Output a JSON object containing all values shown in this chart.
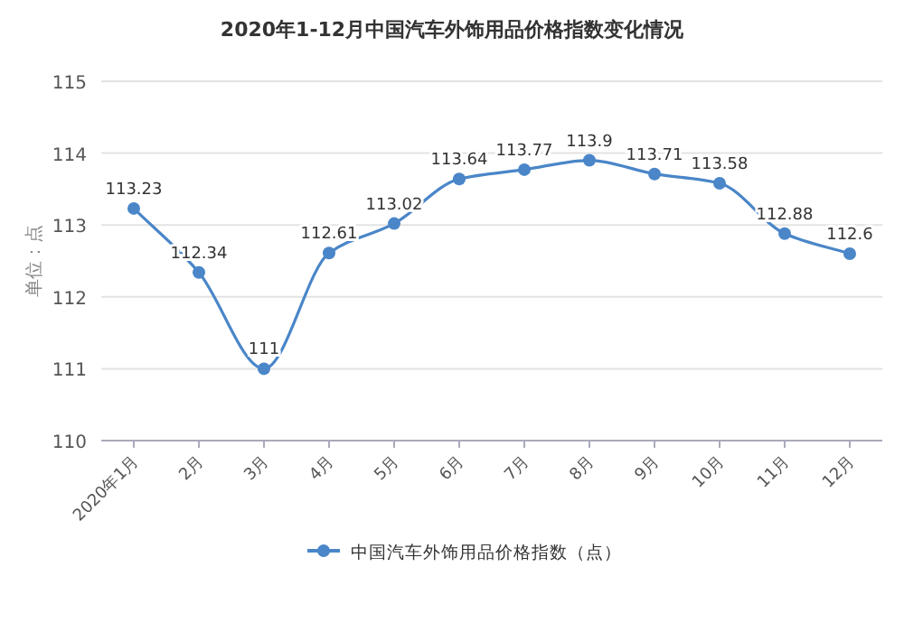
{
  "chart_data": {
    "type": "line",
    "title": "2020年1-12月中国汽车外饰用品价格指数变化情况",
    "ylabel": "单位：点",
    "categories": [
      "2020年1月",
      "2月",
      "3月",
      "4月",
      "5月",
      "6月",
      "7月",
      "8月",
      "9月",
      "10月",
      "11月",
      "12月"
    ],
    "series": [
      {
        "name": "中国汽车外饰用品价格指数（点）",
        "color": "#4a86c8",
        "values": [
          113.23,
          112.34,
          111,
          112.61,
          113.02,
          113.64,
          113.77,
          113.9,
          113.71,
          113.58,
          112.88,
          112.6
        ]
      }
    ],
    "ylim": [
      110,
      115
    ],
    "yticks": [
      110,
      111,
      112,
      113,
      114,
      115
    ],
    "grid": "y",
    "legend": "bottom",
    "marker": "circle",
    "line_style": "solid",
    "data_labels": true
  }
}
